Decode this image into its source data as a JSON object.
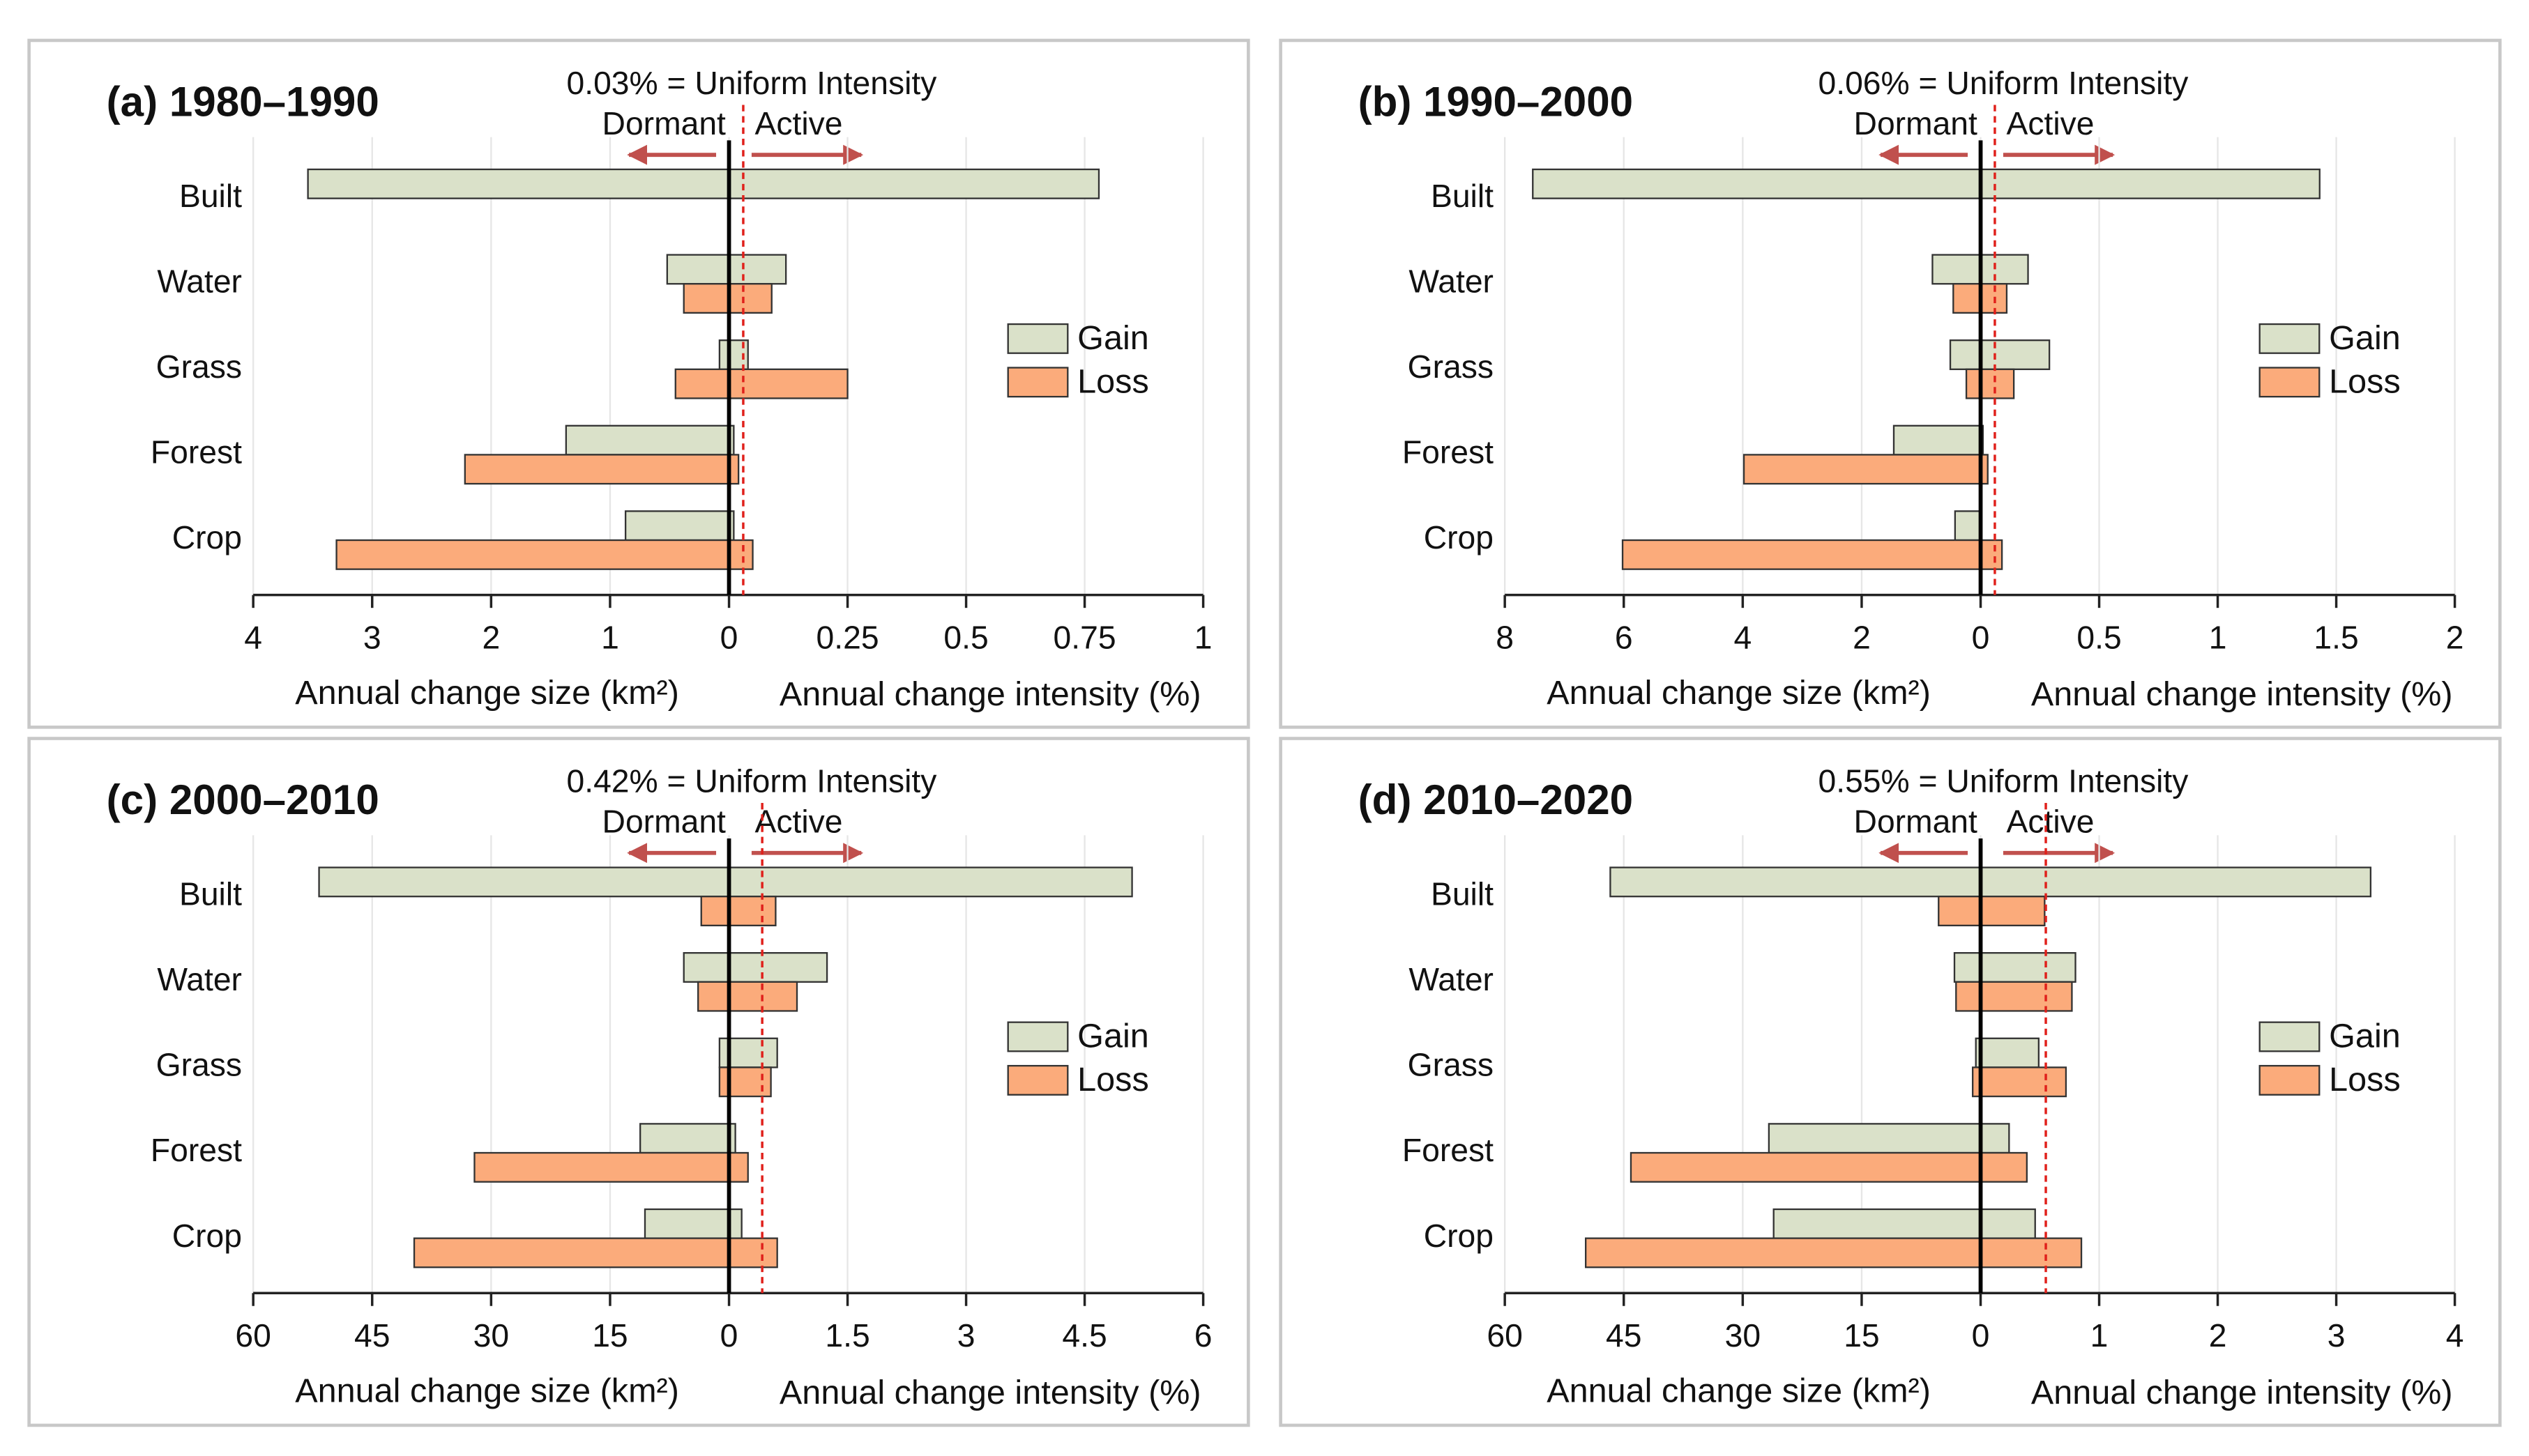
{
  "chart_data": [
    {
      "type": "intensity-bar",
      "title": "(a) 1980–1990",
      "annotation": "0.03% = Uniform Intensity",
      "uniform_intensity": 0.03,
      "dormant_label": "Dormant",
      "active_label": "Active",
      "size_axis_label": "Annual change size (km²)",
      "intensity_axis_label": "Annual change intensity (%)",
      "categories": [
        "Built",
        "Water",
        "Grass",
        "Forest",
        "Crop"
      ],
      "size_xlim": [
        4,
        0
      ],
      "size_xticks": [
        4,
        3,
        2,
        1,
        0
      ],
      "intensity_xlim": [
        0,
        1
      ],
      "intensity_xticks": [
        0.25,
        0.5,
        0.75,
        1
      ],
      "grid": true,
      "series": [
        {
          "name": "Gain",
          "color": "#dae1c9",
          "size_values": [
            3.54,
            0.52,
            0.08,
            1.37,
            0.87
          ],
          "intensity_values": [
            0.78,
            0.12,
            0.04,
            0.01,
            0.01
          ]
        },
        {
          "name": "Loss",
          "color": "#fbab7b",
          "size_values": [
            null,
            0.38,
            0.45,
            2.22,
            3.3
          ],
          "intensity_values": [
            null,
            0.09,
            0.25,
            0.02,
            0.05
          ]
        }
      ]
    },
    {
      "type": "intensity-bar",
      "title": "(b) 1990–2000",
      "annotation": "0.06% = Uniform Intensity",
      "uniform_intensity": 0.06,
      "dormant_label": "Dormant",
      "active_label": "Active",
      "size_axis_label": "Annual change size (km²)",
      "intensity_axis_label": "Annual change intensity (%)",
      "categories": [
        "Built",
        "Water",
        "Grass",
        "Forest",
        "Crop"
      ],
      "size_xlim": [
        8,
        0
      ],
      "size_xticks": [
        8,
        6,
        4,
        2,
        0
      ],
      "intensity_xlim": [
        0,
        2
      ],
      "intensity_xticks": [
        0.5,
        1,
        1.5,
        2
      ],
      "grid": true,
      "series": [
        {
          "name": "Gain",
          "color": "#dae1c9",
          "size_values": [
            7.53,
            0.81,
            0.51,
            1.46,
            0.43
          ],
          "intensity_values": [
            1.43,
            0.2,
            0.29,
            0.01,
            0
          ]
        },
        {
          "name": "Loss",
          "color": "#fbab7b",
          "size_values": [
            null,
            0.46,
            0.24,
            3.98,
            6.02
          ],
          "intensity_values": [
            null,
            0.11,
            0.14,
            0.03,
            0.09
          ]
        }
      ]
    },
    {
      "type": "intensity-bar",
      "title": "(c) 2000–2010",
      "annotation": "0.42% = Uniform Intensity",
      "uniform_intensity": 0.42,
      "dormant_label": "Dormant",
      "active_label": "Active",
      "size_axis_label": "Annual change size (km²)",
      "intensity_axis_label": "Annual change intensity (%)",
      "categories": [
        "Built",
        "Water",
        "Grass",
        "Forest",
        "Crop"
      ],
      "size_xlim": [
        60,
        0
      ],
      "size_xticks": [
        60,
        45,
        30,
        15,
        0
      ],
      "intensity_xlim": [
        0,
        6
      ],
      "intensity_xticks": [
        1.5,
        3,
        4.5,
        6
      ],
      "grid": true,
      "series": [
        {
          "name": "Gain",
          "color": "#dae1c9",
          "size_values": [
            51.7,
            5.7,
            1.2,
            11.2,
            10.6
          ],
          "intensity_values": [
            5.1,
            1.24,
            0.61,
            0.08,
            0.16
          ]
        },
        {
          "name": "Loss",
          "color": "#fbab7b",
          "size_values": [
            3.5,
            3.9,
            1.2,
            32.1,
            39.7
          ],
          "intensity_values": [
            0.59,
            0.86,
            0.53,
            0.24,
            0.61
          ]
        }
      ]
    },
    {
      "type": "intensity-bar",
      "title": "(d) 2010–2020",
      "annotation": "0.55% = Uniform Intensity",
      "uniform_intensity": 0.55,
      "dormant_label": "Dormant",
      "active_label": "Active",
      "size_axis_label": "Annual change size (km²)",
      "intensity_axis_label": "Annual change intensity (%)",
      "categories": [
        "Built",
        "Water",
        "Grass",
        "Forest",
        "Crop"
      ],
      "size_xlim": [
        60,
        0
      ],
      "size_xticks": [
        60,
        45,
        30,
        15,
        0
      ],
      "intensity_xlim": [
        0,
        4
      ],
      "intensity_xticks": [
        1,
        2,
        3,
        4
      ],
      "grid": true,
      "series": [
        {
          "name": "Gain",
          "color": "#dae1c9",
          "size_values": [
            46.7,
            3.3,
            0.6,
            26.7,
            26.1
          ],
          "intensity_values": [
            3.29,
            0.8,
            0.49,
            0.24,
            0.46
          ]
        },
        {
          "name": "Loss",
          "color": "#fbab7b",
          "size_values": [
            5.3,
            3.1,
            1.0,
            44.1,
            49.8
          ],
          "intensity_values": [
            0.54,
            0.77,
            0.72,
            0.39,
            0.85
          ]
        }
      ]
    }
  ]
}
